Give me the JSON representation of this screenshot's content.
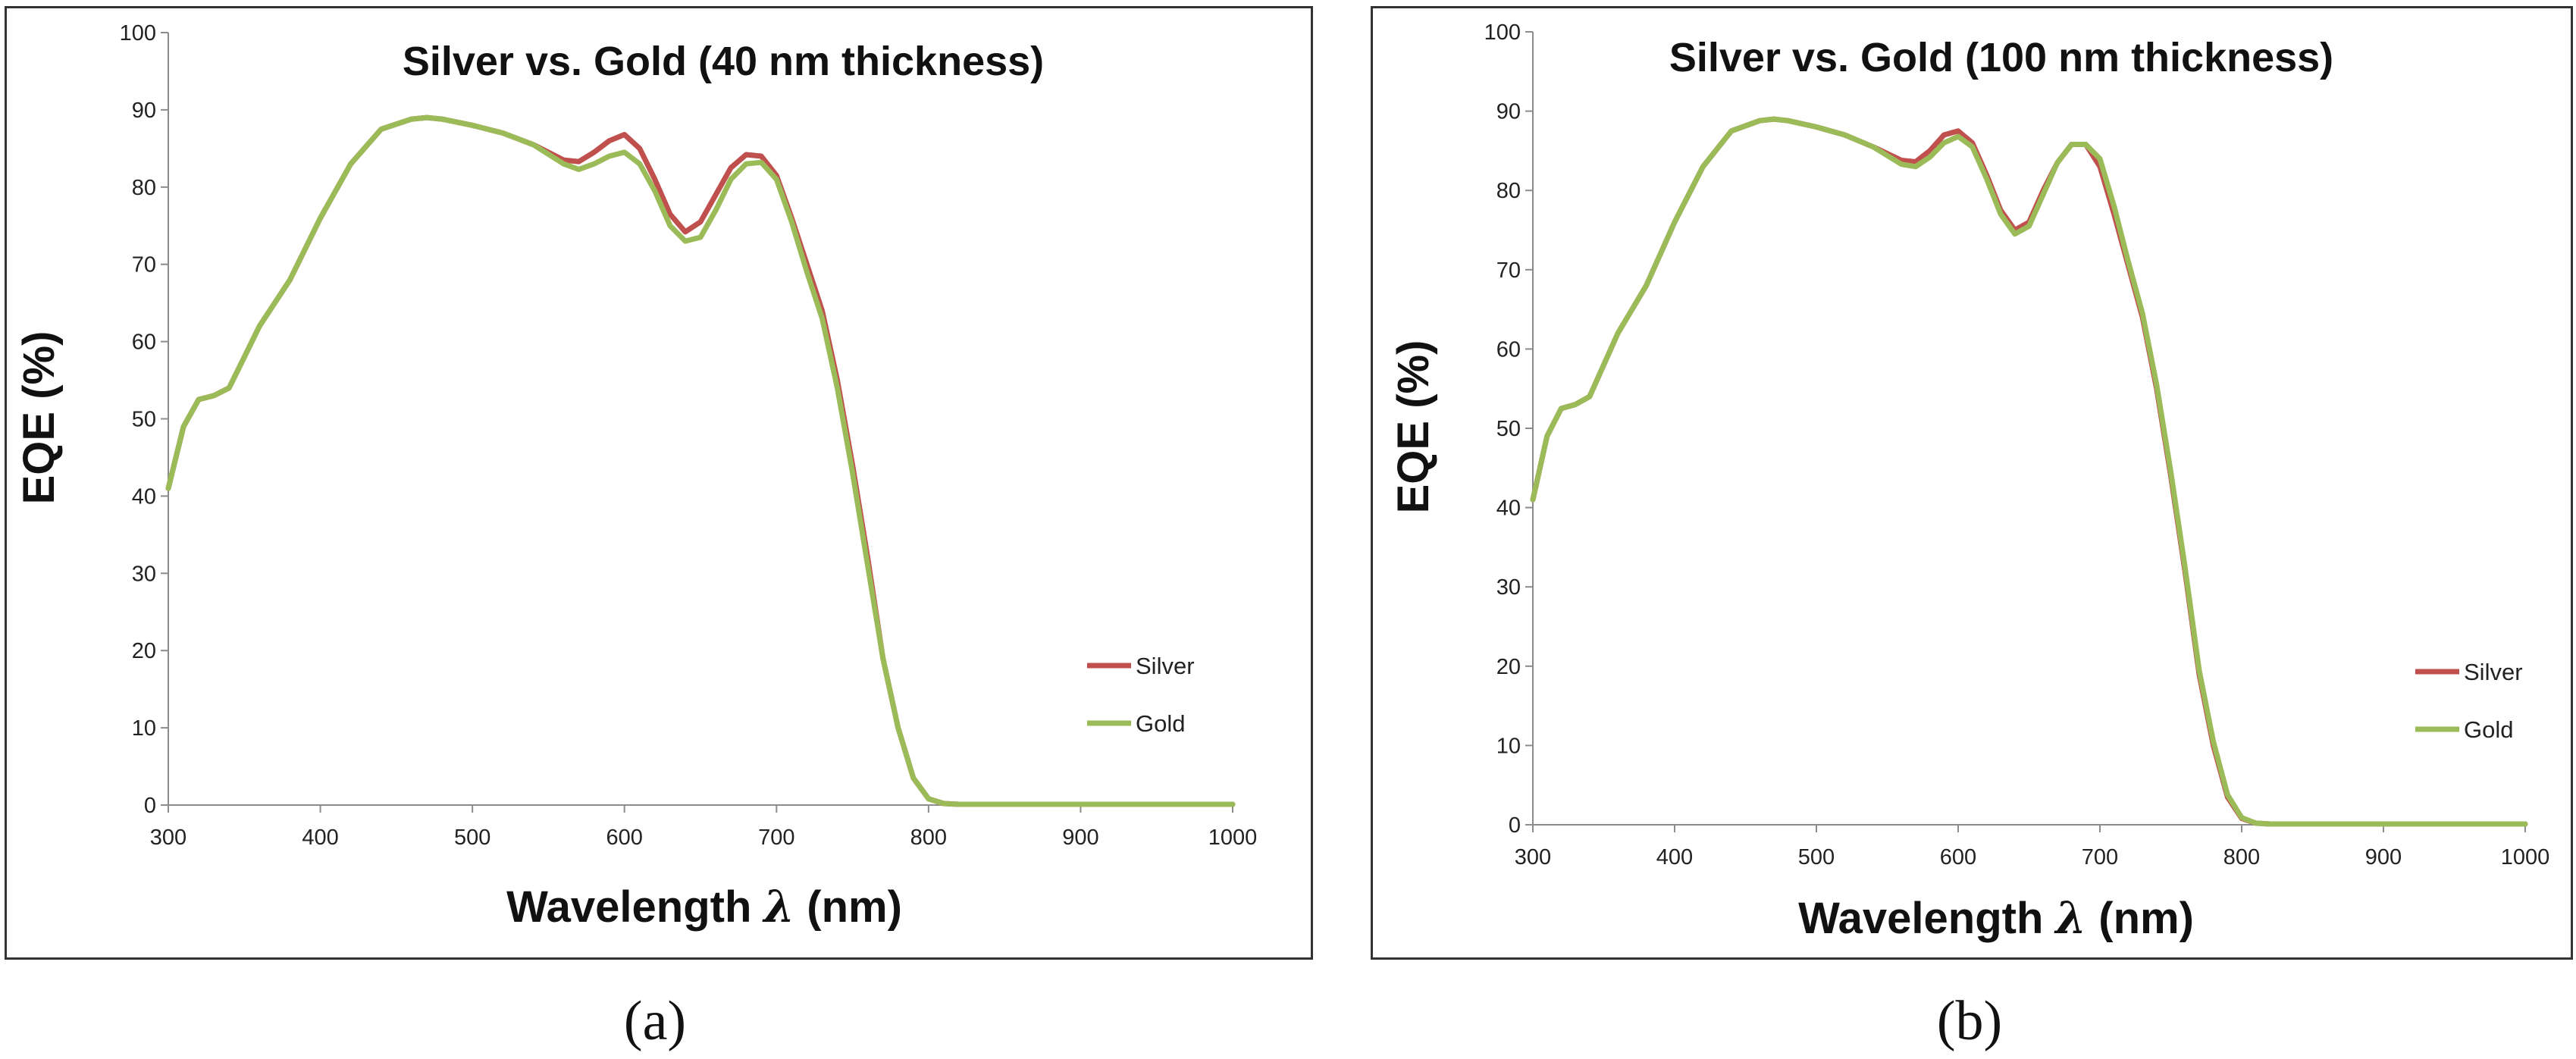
{
  "chart_data": [
    {
      "type": "line",
      "title": "Silver vs. Gold (40 nm thickness)",
      "xlabel_main": "Wavelength ",
      "xlabel_symbol": "λ",
      "xlabel_unit": " (nm)",
      "ylabel": "EQE (%)",
      "xlim": [
        300,
        1000
      ],
      "ylim": [
        0,
        100
      ],
      "xticks": [
        300,
        400,
        500,
        600,
        700,
        800,
        900,
        1000
      ],
      "yticks": [
        0,
        10,
        20,
        30,
        40,
        50,
        60,
        70,
        80,
        90,
        100
      ],
      "grid": false,
      "legend_position": "right",
      "series": [
        {
          "name": "Silver",
          "color": "#c0504d",
          "x": [
            300,
            310,
            320,
            330,
            340,
            350,
            360,
            380,
            400,
            420,
            440,
            460,
            470,
            480,
            500,
            520,
            540,
            560,
            570,
            580,
            590,
            600,
            610,
            620,
            630,
            640,
            650,
            660,
            670,
            680,
            690,
            700,
            710,
            720,
            730,
            740,
            750,
            760,
            770,
            780,
            790,
            800,
            810,
            820,
            850,
            900,
            1000
          ],
          "y": [
            41,
            49,
            52.5,
            53,
            54,
            58,
            62,
            68,
            76,
            83,
            87.5,
            88.8,
            89,
            88.8,
            88,
            87,
            85.5,
            83.5,
            83.3,
            84.5,
            86,
            86.8,
            85,
            81,
            76.5,
            74.2,
            75.5,
            79,
            82.5,
            84.2,
            84,
            81.5,
            76,
            70,
            64,
            55,
            44,
            32,
            19,
            10,
            3.5,
            0.8,
            0.2,
            0.1,
            0.1,
            0.1,
            0.1
          ]
        },
        {
          "name": "Gold",
          "color": "#9bbb59",
          "x": [
            300,
            310,
            320,
            330,
            340,
            350,
            360,
            380,
            400,
            420,
            440,
            460,
            470,
            480,
            500,
            520,
            540,
            560,
            570,
            580,
            590,
            600,
            610,
            620,
            630,
            640,
            650,
            660,
            670,
            680,
            690,
            700,
            710,
            720,
            730,
            740,
            750,
            760,
            770,
            780,
            790,
            800,
            810,
            820,
            850,
            900,
            1000
          ],
          "y": [
            41,
            49,
            52.5,
            53,
            54,
            58,
            62,
            68,
            76,
            83,
            87.5,
            88.8,
            89,
            88.8,
            88,
            87,
            85.5,
            83,
            82.3,
            83,
            84,
            84.5,
            83,
            79.5,
            75,
            73,
            73.5,
            77,
            81,
            83,
            83.2,
            81,
            75.5,
            69,
            63,
            54,
            43,
            31,
            19,
            10,
            3.5,
            0.8,
            0.2,
            0.1,
            0.1,
            0.1,
            0.1
          ]
        }
      ]
    },
    {
      "type": "line",
      "title": "Silver vs. Gold (100 nm thickness)",
      "xlabel_main": "Wavelength ",
      "xlabel_symbol": "λ",
      "xlabel_unit": " (nm)",
      "ylabel": "EQE (%)",
      "xlim": [
        300,
        1000
      ],
      "ylim": [
        0,
        100
      ],
      "xticks": [
        300,
        400,
        500,
        600,
        700,
        800,
        900,
        1000
      ],
      "yticks": [
        0,
        10,
        20,
        30,
        40,
        50,
        60,
        70,
        80,
        90,
        100
      ],
      "grid": false,
      "legend_position": "right",
      "series": [
        {
          "name": "Silver",
          "color": "#c0504d",
          "x": [
            300,
            310,
            320,
            330,
            340,
            350,
            360,
            380,
            400,
            420,
            440,
            460,
            470,
            480,
            500,
            520,
            540,
            560,
            570,
            580,
            590,
            600,
            610,
            620,
            630,
            640,
            650,
            660,
            670,
            680,
            690,
            700,
            710,
            720,
            730,
            740,
            750,
            760,
            770,
            780,
            790,
            800,
            810,
            820,
            850,
            900,
            1000
          ],
          "y": [
            41,
            49,
            52.5,
            53,
            54,
            58,
            62,
            68,
            76,
            83,
            87.5,
            88.8,
            89,
            88.8,
            88,
            87,
            85.5,
            83.8,
            83.6,
            85,
            87,
            87.5,
            86,
            82,
            77.5,
            75,
            76,
            80,
            83.5,
            85.8,
            85.8,
            83,
            77,
            70.5,
            64,
            55,
            44,
            32,
            19,
            10,
            3.5,
            0.8,
            0.2,
            0.1,
            0.1,
            0.1,
            0.1
          ]
        },
        {
          "name": "Gold",
          "color": "#9bbb59",
          "x": [
            300,
            310,
            320,
            330,
            340,
            350,
            360,
            380,
            400,
            420,
            440,
            460,
            470,
            480,
            500,
            520,
            540,
            560,
            570,
            580,
            590,
            600,
            610,
            620,
            630,
            640,
            650,
            660,
            670,
            680,
            690,
            700,
            710,
            720,
            730,
            740,
            750,
            760,
            770,
            780,
            790,
            800,
            810,
            820,
            850,
            900,
            1000
          ],
          "y": [
            41,
            49,
            52.5,
            53,
            54,
            58,
            62,
            68,
            76,
            83,
            87.5,
            88.8,
            89,
            88.8,
            88,
            87,
            85.5,
            83.3,
            83,
            84.2,
            86,
            86.8,
            85.5,
            81.5,
            77,
            74.5,
            75.5,
            79.5,
            83.5,
            85.8,
            85.8,
            84,
            78,
            71,
            64.5,
            55.5,
            44.5,
            32.5,
            19.5,
            10.5,
            3.8,
            0.9,
            0.2,
            0.1,
            0.1,
            0.1,
            0.1
          ]
        }
      ]
    }
  ],
  "captions": [
    "(a)",
    "(b)"
  ]
}
